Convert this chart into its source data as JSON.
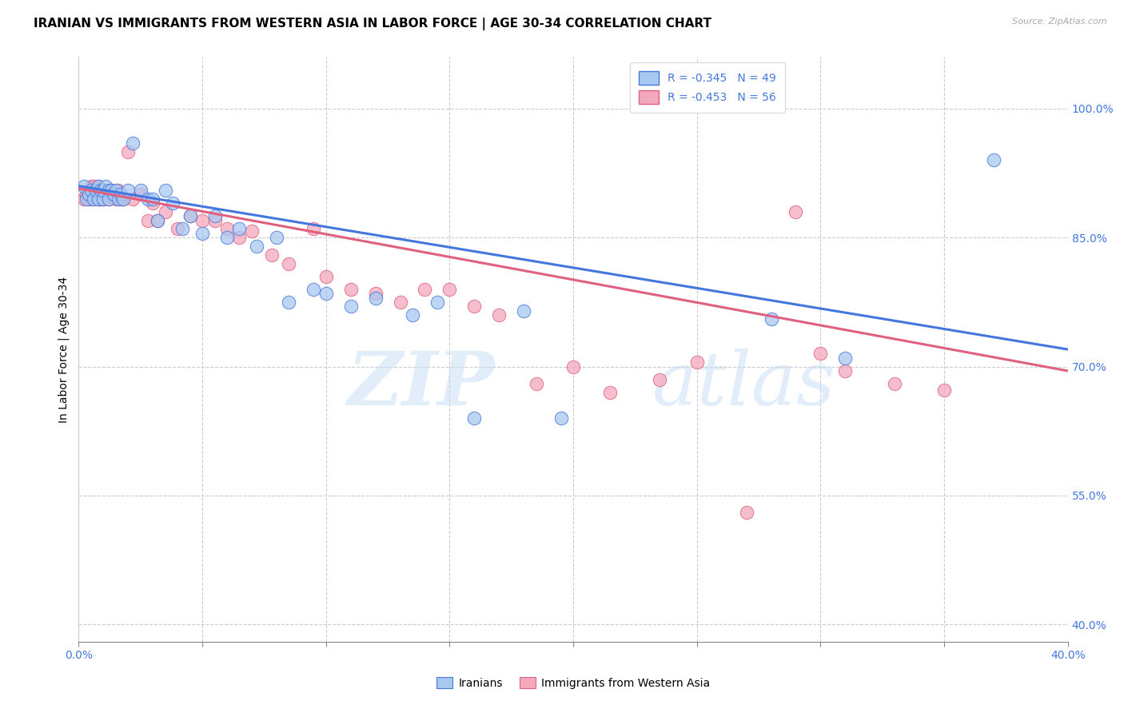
{
  "title": "IRANIAN VS IMMIGRANTS FROM WESTERN ASIA IN LABOR FORCE | AGE 30-34 CORRELATION CHART",
  "source": "Source: ZipAtlas.com",
  "ylabel": "In Labor Force | Age 30-34",
  "xmin": 0.0,
  "xmax": 0.4,
  "ymin": 0.38,
  "ymax": 1.06,
  "yticks": [
    0.4,
    0.55,
    0.7,
    0.85,
    1.0
  ],
  "ytick_labels": [
    "40.0%",
    "55.0%",
    "70.0%",
    "85.0%",
    "100.0%"
  ],
  "xticks": [
    0.0,
    0.05,
    0.1,
    0.15,
    0.2,
    0.25,
    0.3,
    0.35,
    0.4
  ],
  "xtick_show_labels": [
    true,
    false,
    false,
    false,
    false,
    false,
    false,
    false,
    true
  ],
  "xtick_labels_shown": [
    "0.0%",
    "40.0%"
  ],
  "legend_label1": "R = -0.345   N = 49",
  "legend_label2": "R = -0.453   N = 56",
  "legend_series1": "Iranians",
  "legend_series2": "Immigrants from Western Asia",
  "color_blue": "#A8C8F0",
  "color_pink": "#F4A8BC",
  "color_blue_line": "#4477DD",
  "color_pink_line": "#E06080",
  "blue_scatter_x": [
    0.002,
    0.003,
    0.004,
    0.005,
    0.006,
    0.007,
    0.008,
    0.008,
    0.009,
    0.01,
    0.01,
    0.011,
    0.012,
    0.012,
    0.013,
    0.014,
    0.015,
    0.016,
    0.017,
    0.018,
    0.02,
    0.022,
    0.025,
    0.028,
    0.03,
    0.032,
    0.035,
    0.038,
    0.042,
    0.045,
    0.05,
    0.055,
    0.06,
    0.065,
    0.072,
    0.08,
    0.085,
    0.095,
    0.1,
    0.11,
    0.12,
    0.135,
    0.145,
    0.16,
    0.18,
    0.195,
    0.28,
    0.31,
    0.37
  ],
  "blue_scatter_y": [
    0.91,
    0.895,
    0.9,
    0.905,
    0.895,
    0.905,
    0.91,
    0.895,
    0.905,
    0.895,
    0.905,
    0.91,
    0.905,
    0.895,
    0.905,
    0.9,
    0.905,
    0.895,
    0.9,
    0.895,
    0.905,
    0.96,
    0.905,
    0.895,
    0.895,
    0.87,
    0.905,
    0.89,
    0.86,
    0.875,
    0.855,
    0.875,
    0.85,
    0.86,
    0.84,
    0.85,
    0.775,
    0.79,
    0.785,
    0.77,
    0.78,
    0.76,
    0.775,
    0.64,
    0.765,
    0.64,
    0.755,
    0.71,
    0.94
  ],
  "pink_scatter_x": [
    0.002,
    0.003,
    0.004,
    0.005,
    0.005,
    0.006,
    0.007,
    0.008,
    0.008,
    0.009,
    0.01,
    0.01,
    0.011,
    0.012,
    0.013,
    0.014,
    0.015,
    0.016,
    0.017,
    0.018,
    0.02,
    0.022,
    0.025,
    0.028,
    0.03,
    0.032,
    0.035,
    0.04,
    0.045,
    0.05,
    0.055,
    0.06,
    0.065,
    0.07,
    0.078,
    0.085,
    0.095,
    0.1,
    0.11,
    0.12,
    0.13,
    0.14,
    0.15,
    0.16,
    0.17,
    0.185,
    0.2,
    0.215,
    0.235,
    0.25,
    0.27,
    0.29,
    0.3,
    0.31,
    0.33,
    0.35
  ],
  "pink_scatter_y": [
    0.895,
    0.9,
    0.895,
    0.91,
    0.895,
    0.91,
    0.905,
    0.895,
    0.91,
    0.895,
    0.9,
    0.895,
    0.9,
    0.895,
    0.905,
    0.9,
    0.895,
    0.905,
    0.895,
    0.895,
    0.95,
    0.895,
    0.9,
    0.87,
    0.89,
    0.87,
    0.88,
    0.86,
    0.875,
    0.87,
    0.87,
    0.86,
    0.85,
    0.858,
    0.83,
    0.82,
    0.86,
    0.805,
    0.79,
    0.785,
    0.775,
    0.79,
    0.79,
    0.77,
    0.76,
    0.68,
    0.7,
    0.67,
    0.685,
    0.705,
    0.53,
    0.88,
    0.715,
    0.695,
    0.68,
    0.673
  ],
  "blue_line_x": [
    0.0,
    0.4
  ],
  "blue_line_y": [
    0.91,
    0.72
  ],
  "pink_line_x": [
    0.0,
    0.4
  ],
  "pink_line_y": [
    0.907,
    0.695
  ],
  "watermark_zip": "ZIP",
  "watermark_atlas": "atlas",
  "background_color": "#FFFFFF",
  "grid_color": "#CCCCCC",
  "title_fontsize": 11,
  "axis_label_fontsize": 10,
  "tick_fontsize": 9,
  "marker_size": 140
}
